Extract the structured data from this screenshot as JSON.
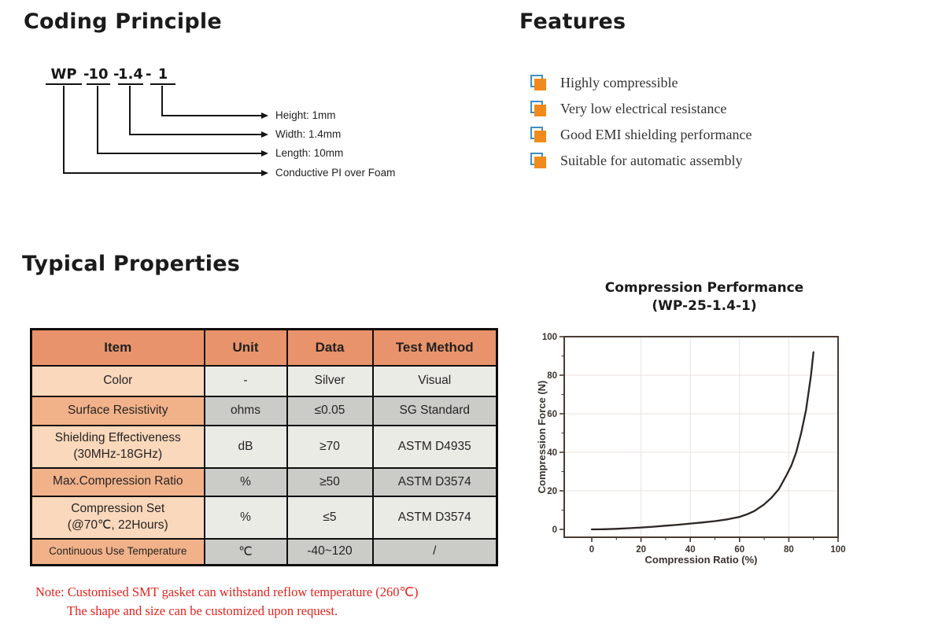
{
  "coding": {
    "title": "Coding Principle",
    "code_segments": [
      "WP",
      "10",
      "1.4",
      "1"
    ],
    "separator": "-",
    "targets": [
      {
        "label": "Height: 1mm"
      },
      {
        "label": "Width: 1.4mm"
      },
      {
        "label": "Length: 10mm"
      },
      {
        "label": "Conductive PI over Foam"
      }
    ]
  },
  "features": {
    "title": "Features",
    "items": [
      "Highly compressible",
      "Very low electrical resistance",
      "Good EMI shielding performance",
      "Suitable for automatic assembly"
    ],
    "bullet_colors": {
      "orange": "#F08A1D",
      "blue": "#3E8FC4"
    }
  },
  "properties": {
    "title": "Typical Properties",
    "table": {
      "columns": [
        "Item",
        "Unit",
        "Data",
        "Test Method"
      ],
      "rows": [
        {
          "item": "Color",
          "unit": "-",
          "data": "Silver",
          "method": "Visual"
        },
        {
          "item": "Surface Resistivity",
          "unit": "ohms",
          "data": "≤0.05",
          "method": "SG Standard"
        },
        {
          "item": "Shielding Effectiveness\n(30MHz-18GHz)",
          "unit": "dB",
          "data": "≥70",
          "method": "ASTM D4935"
        },
        {
          "item": "Max.Compression Ratio",
          "unit": "%",
          "data": "≥50",
          "method": "ASTM D3574"
        },
        {
          "item": "Compression Set\n(@70℃, 22Hours)",
          "unit": "%",
          "data": "≤5",
          "method": "ASTM D3574"
        },
        {
          "item": "Continuous Use Temperature",
          "unit": "℃",
          "data": "-40~120",
          "method": "/"
        }
      ],
      "colors": {
        "header_bg": "#E8936B",
        "item_odd": "#FAD8BC",
        "item_even": "#F1B28A",
        "cell_odd": "#EBEBE6",
        "cell_even": "#CBCBC7"
      }
    },
    "note_line1": "Note: Customised SMT gasket can withstand reflow temperature (260℃)",
    "note_line2": "The shape and size can be customized upon request.",
    "note_color": "#E2231E"
  },
  "chart_data": {
    "type": "line",
    "title": "Compression Performance",
    "subtitle": "(WP-25-1.4-1)",
    "xlabel": "Compression Ratio (%)",
    "ylabel": "Compression Force (N)",
    "xlim": [
      0,
      100
    ],
    "ylim": [
      0,
      100
    ],
    "xticks": [
      0,
      20,
      40,
      60,
      80,
      100
    ],
    "yticks": [
      0,
      20,
      40,
      60,
      80,
      100
    ],
    "minor_step": 10,
    "grid": true,
    "legend": "none",
    "colors": {
      "axis": "#4a3b32",
      "grid": "#e9e3df",
      "line": "#2b2623",
      "tick_text": "#3b332d"
    },
    "series": [
      {
        "name": "WP-25-1.4-1",
        "x": [
          0,
          5,
          10,
          15,
          20,
          25,
          30,
          35,
          40,
          45,
          50,
          55,
          60,
          63,
          66,
          70,
          73,
          76,
          79,
          81,
          83,
          85,
          87,
          89,
          90
        ],
        "y": [
          0,
          0.1,
          0.3,
          0.6,
          1.0,
          1.4,
          1.9,
          2.4,
          3.0,
          3.6,
          4.3,
          5.2,
          6.5,
          7.8,
          9.5,
          13,
          16.5,
          21,
          28,
          33,
          40,
          50,
          62,
          80,
          92
        ]
      }
    ]
  }
}
